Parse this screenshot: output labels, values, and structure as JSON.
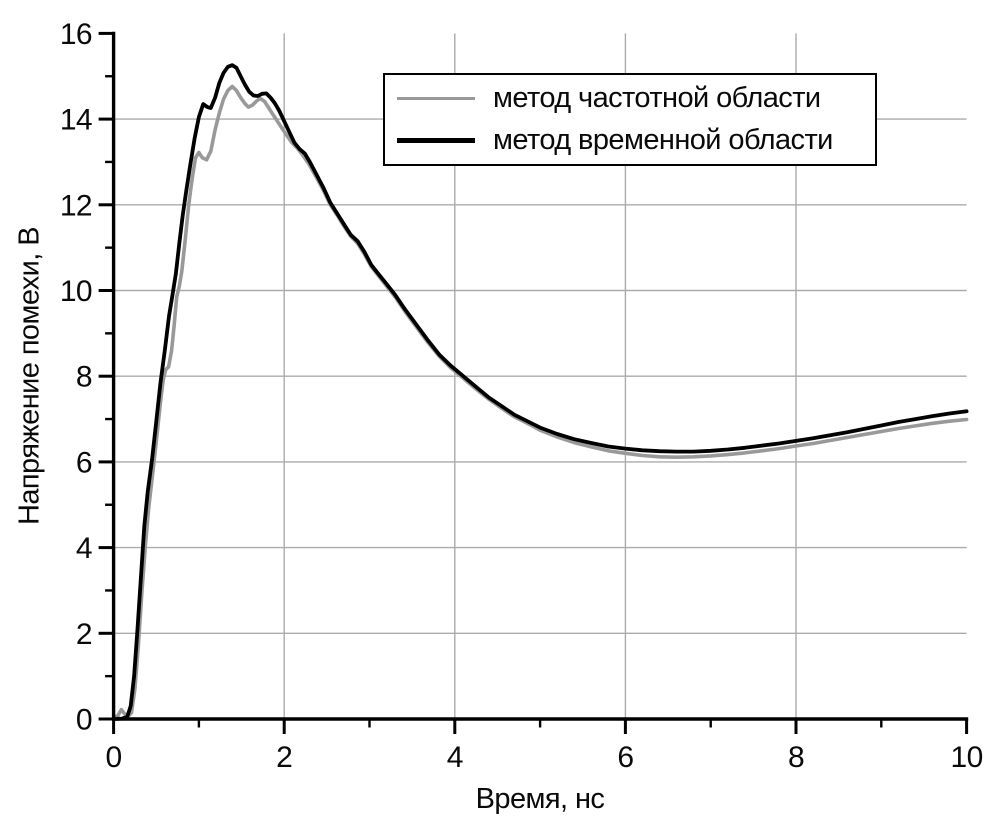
{
  "chart_data": {
    "type": "line",
    "xlabel": "Время, нс",
    "ylabel": "Напряжение помехи, В",
    "xlim": [
      0,
      10
    ],
    "ylim": [
      0,
      16
    ],
    "x_major_ticks": [
      0,
      2,
      4,
      6,
      8,
      10
    ],
    "x_minor_ticks": [
      1,
      3,
      5,
      7,
      9
    ],
    "y_major_ticks": [
      0,
      2,
      4,
      6,
      8,
      10,
      12,
      14,
      16
    ],
    "y_minor_ticks": [
      1,
      3,
      5,
      7,
      9,
      11,
      13,
      15
    ],
    "grid": {
      "x_lines": [
        2,
        4,
        6,
        8
      ],
      "y_lines": [
        2,
        4,
        6,
        8,
        10,
        12,
        14
      ],
      "color": "#ababab"
    },
    "axis_color": "#000000",
    "legend": {
      "position": "top-right",
      "border_color": "#000000",
      "background": "#ffffff"
    },
    "series": [
      {
        "name": "метод частотной области",
        "color": "#999999",
        "width": 3.6,
        "points": [
          [
            0,
            0.02
          ],
          [
            0.05,
            0.08
          ],
          [
            0.09,
            0.22
          ],
          [
            0.13,
            0.12
          ],
          [
            0.17,
            0.06
          ],
          [
            0.21,
            0.15
          ],
          [
            0.25,
            0.7
          ],
          [
            0.29,
            1.7
          ],
          [
            0.33,
            2.9
          ],
          [
            0.37,
            4.0
          ],
          [
            0.41,
            4.9
          ],
          [
            0.46,
            5.75
          ],
          [
            0.51,
            6.65
          ],
          [
            0.55,
            7.4
          ],
          [
            0.58,
            7.9
          ],
          [
            0.61,
            8.15
          ],
          [
            0.645,
            8.22
          ],
          [
            0.68,
            8.6
          ],
          [
            0.71,
            9.2
          ],
          [
            0.74,
            9.85
          ],
          [
            0.77,
            10.1
          ],
          [
            0.8,
            10.45
          ],
          [
            0.84,
            11.2
          ],
          [
            0.88,
            12.0
          ],
          [
            0.92,
            12.6
          ],
          [
            0.96,
            13.1
          ],
          [
            1.0,
            13.22
          ],
          [
            1.04,
            13.1
          ],
          [
            1.09,
            13.05
          ],
          [
            1.14,
            13.25
          ],
          [
            1.19,
            13.75
          ],
          [
            1.24,
            14.15
          ],
          [
            1.29,
            14.47
          ],
          [
            1.34,
            14.67
          ],
          [
            1.39,
            14.76
          ],
          [
            1.44,
            14.67
          ],
          [
            1.49,
            14.5
          ],
          [
            1.54,
            14.36
          ],
          [
            1.58,
            14.28
          ],
          [
            1.63,
            14.33
          ],
          [
            1.68,
            14.43
          ],
          [
            1.72,
            14.48
          ],
          [
            1.77,
            14.41
          ],
          [
            1.82,
            14.26
          ],
          [
            1.87,
            14.1
          ],
          [
            1.92,
            13.95
          ],
          [
            1.97,
            13.8
          ],
          [
            2.03,
            13.62
          ],
          [
            2.09,
            13.45
          ],
          [
            2.15,
            13.33
          ],
          [
            2.21,
            13.18
          ],
          [
            2.29,
            12.95
          ],
          [
            2.38,
            12.63
          ],
          [
            2.46,
            12.34
          ],
          [
            2.54,
            12.0
          ],
          [
            2.62,
            11.76
          ],
          [
            2.7,
            11.5
          ],
          [
            2.78,
            11.27
          ],
          [
            2.86,
            11.1
          ],
          [
            2.94,
            10.85
          ],
          [
            3.02,
            10.56
          ],
          [
            3.1,
            10.36
          ],
          [
            3.2,
            10.1
          ],
          [
            3.3,
            9.85
          ],
          [
            3.42,
            9.5
          ],
          [
            3.55,
            9.15
          ],
          [
            3.68,
            8.8
          ],
          [
            3.82,
            8.46
          ],
          [
            3.95,
            8.2
          ],
          [
            4.1,
            7.95
          ],
          [
            4.25,
            7.7
          ],
          [
            4.4,
            7.46
          ],
          [
            4.55,
            7.25
          ],
          [
            4.7,
            7.05
          ],
          [
            4.85,
            6.9
          ],
          [
            5.0,
            6.74
          ],
          [
            5.2,
            6.58
          ],
          [
            5.4,
            6.45
          ],
          [
            5.6,
            6.35
          ],
          [
            5.8,
            6.26
          ],
          [
            6.0,
            6.2
          ],
          [
            6.2,
            6.15
          ],
          [
            6.4,
            6.12
          ],
          [
            6.6,
            6.11
          ],
          [
            6.8,
            6.12
          ],
          [
            7.0,
            6.14
          ],
          [
            7.2,
            6.17
          ],
          [
            7.4,
            6.21
          ],
          [
            7.6,
            6.26
          ],
          [
            7.8,
            6.31
          ],
          [
            8.0,
            6.37
          ],
          [
            8.2,
            6.43
          ],
          [
            8.4,
            6.5
          ],
          [
            8.6,
            6.57
          ],
          [
            8.8,
            6.64
          ],
          [
            9.0,
            6.71
          ],
          [
            9.2,
            6.78
          ],
          [
            9.4,
            6.84
          ],
          [
            9.6,
            6.9
          ],
          [
            9.8,
            6.95
          ],
          [
            10,
            6.99
          ]
        ]
      },
      {
        "name": "метод временной области",
        "color": "#000000",
        "width": 3.8,
        "points": [
          [
            0,
            0
          ],
          [
            0.1,
            0.01
          ],
          [
            0.16,
            0.05
          ],
          [
            0.2,
            0.3
          ],
          [
            0.24,
            1.0
          ],
          [
            0.28,
            2.1
          ],
          [
            0.32,
            3.3
          ],
          [
            0.36,
            4.5
          ],
          [
            0.4,
            5.3
          ],
          [
            0.45,
            6.05
          ],
          [
            0.5,
            6.95
          ],
          [
            0.55,
            7.85
          ],
          [
            0.6,
            8.6
          ],
          [
            0.65,
            9.4
          ],
          [
            0.69,
            9.9
          ],
          [
            0.73,
            10.4
          ],
          [
            0.77,
            11.1
          ],
          [
            0.81,
            11.75
          ],
          [
            0.85,
            12.3
          ],
          [
            0.9,
            12.95
          ],
          [
            0.95,
            13.55
          ],
          [
            1.0,
            14.05
          ],
          [
            1.05,
            14.35
          ],
          [
            1.1,
            14.28
          ],
          [
            1.14,
            14.26
          ],
          [
            1.19,
            14.5
          ],
          [
            1.24,
            14.85
          ],
          [
            1.29,
            15.08
          ],
          [
            1.34,
            15.22
          ],
          [
            1.39,
            15.26
          ],
          [
            1.44,
            15.2
          ],
          [
            1.49,
            15.0
          ],
          [
            1.54,
            14.8
          ],
          [
            1.59,
            14.64
          ],
          [
            1.64,
            14.55
          ],
          [
            1.69,
            14.54
          ],
          [
            1.74,
            14.59
          ],
          [
            1.79,
            14.6
          ],
          [
            1.84,
            14.5
          ],
          [
            1.89,
            14.37
          ],
          [
            1.94,
            14.2
          ],
          [
            2.0,
            13.95
          ],
          [
            2.06,
            13.7
          ],
          [
            2.12,
            13.45
          ],
          [
            2.18,
            13.3
          ],
          [
            2.24,
            13.2
          ],
          [
            2.3,
            13.0
          ],
          [
            2.38,
            12.7
          ],
          [
            2.46,
            12.4
          ],
          [
            2.54,
            12.05
          ],
          [
            2.62,
            11.8
          ],
          [
            2.7,
            11.55
          ],
          [
            2.78,
            11.3
          ],
          [
            2.86,
            11.15
          ],
          [
            2.94,
            10.9
          ],
          [
            3.02,
            10.6
          ],
          [
            3.1,
            10.4
          ],
          [
            3.2,
            10.15
          ],
          [
            3.3,
            9.9
          ],
          [
            3.42,
            9.55
          ],
          [
            3.55,
            9.2
          ],
          [
            3.68,
            8.85
          ],
          [
            3.82,
            8.5
          ],
          [
            3.95,
            8.25
          ],
          [
            4.1,
            8.0
          ],
          [
            4.25,
            7.75
          ],
          [
            4.4,
            7.5
          ],
          [
            4.55,
            7.3
          ],
          [
            4.7,
            7.1
          ],
          [
            4.85,
            6.95
          ],
          [
            5.0,
            6.8
          ],
          [
            5.2,
            6.65
          ],
          [
            5.4,
            6.53
          ],
          [
            5.6,
            6.44
          ],
          [
            5.8,
            6.36
          ],
          [
            6.0,
            6.31
          ],
          [
            6.2,
            6.27
          ],
          [
            6.4,
            6.25
          ],
          [
            6.6,
            6.24
          ],
          [
            6.8,
            6.24
          ],
          [
            7.0,
            6.26
          ],
          [
            7.2,
            6.29
          ],
          [
            7.4,
            6.33
          ],
          [
            7.6,
            6.38
          ],
          [
            7.8,
            6.43
          ],
          [
            8.0,
            6.49
          ],
          [
            8.2,
            6.55
          ],
          [
            8.4,
            6.62
          ],
          [
            8.6,
            6.69
          ],
          [
            8.8,
            6.77
          ],
          [
            9.0,
            6.85
          ],
          [
            9.2,
            6.93
          ],
          [
            9.4,
            7.0
          ],
          [
            9.6,
            7.07
          ],
          [
            9.8,
            7.13
          ],
          [
            10,
            7.18
          ]
        ]
      }
    ]
  }
}
